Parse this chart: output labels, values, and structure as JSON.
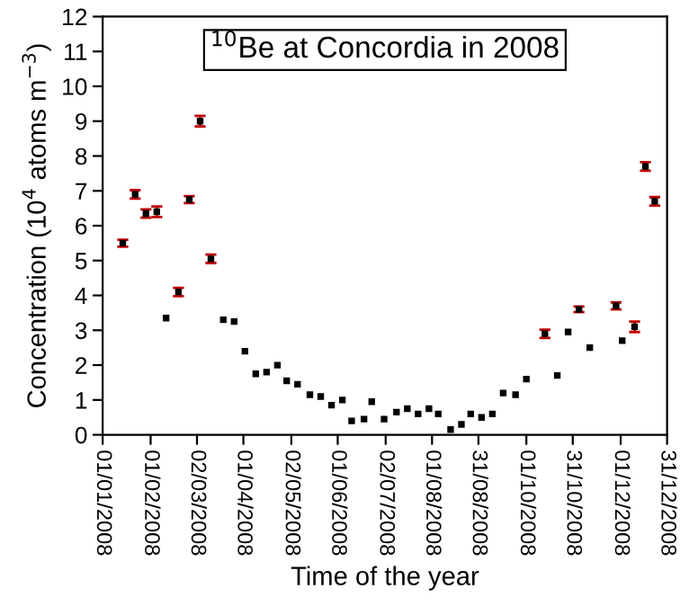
{
  "chart_data": {
    "type": "scatter",
    "title": "$^{10}$Be at Concordia in 2008",
    "xlabel": "Time of the year",
    "ylabel": "Concentration (10$^{4}$ atoms m$^{−3}$)",
    "x": [
      "2008-01-14",
      "2008-01-22",
      "2008-01-29",
      "2008-02-05",
      "2008-02-11",
      "2008-02-19",
      "2008-02-26",
      "2008-03-04",
      "2008-03-11",
      "2008-03-19",
      "2008-03-26",
      "2008-04-02",
      "2008-04-09",
      "2008-04-16",
      "2008-04-23",
      "2008-04-29",
      "2008-05-06",
      "2008-05-14",
      "2008-05-21",
      "2008-05-28",
      "2008-06-04",
      "2008-06-10",
      "2008-06-18",
      "2008-06-23",
      "2008-07-01",
      "2008-07-09",
      "2008-07-16",
      "2008-07-23",
      "2008-07-30",
      "2008-08-05",
      "2008-08-13",
      "2008-08-20",
      "2008-08-26",
      "2008-09-02",
      "2008-09-09",
      "2008-09-16",
      "2008-09-24",
      "2008-10-01",
      "2008-10-13",
      "2008-10-21",
      "2008-10-28",
      "2008-11-04",
      "2008-11-11",
      "2008-11-28",
      "2008-12-02",
      "2008-12-10",
      "2008-12-17",
      "2008-12-23"
    ],
    "series": [
      {
        "color": "#000000",
        "values": [
          5.5,
          6.9,
          6.35,
          6.4,
          3.35,
          4.1,
          6.75,
          9.0,
          5.05,
          3.3,
          3.25,
          2.4,
          1.75,
          1.8,
          2.0,
          1.55,
          1.45,
          1.15,
          1.1,
          0.85,
          1.0,
          0.4,
          0.45,
          0.95,
          0.45,
          0.65,
          0.75,
          0.6,
          0.75,
          0.6,
          0.15,
          0.3,
          0.6,
          0.5,
          0.6,
          1.2,
          1.15,
          1.6,
          2.9,
          1.7,
          2.95,
          3.6,
          2.5,
          3.7,
          2.7,
          3.1,
          7.7,
          6.7
        ],
        "errors": [
          0.1,
          0.12,
          0.12,
          0.15,
          null,
          0.12,
          0.1,
          0.15,
          0.12,
          null,
          null,
          null,
          null,
          null,
          null,
          null,
          null,
          null,
          null,
          null,
          null,
          null,
          null,
          null,
          null,
          null,
          null,
          null,
          null,
          null,
          null,
          null,
          null,
          null,
          null,
          null,
          null,
          null,
          0.12,
          null,
          null,
          0.08,
          null,
          0.1,
          null,
          0.15,
          0.12,
          0.12
        ]
      }
    ],
    "marker": "square",
    "xlim": [
      "2008-01-01",
      "2008-12-31"
    ],
    "xticks": [
      {
        "value": "2008-01-01",
        "label": "01/01/2008"
      },
      {
        "value": "2008-02-01",
        "label": "01/02/2008"
      },
      {
        "value": "2008-03-02",
        "label": "02/03/2008"
      },
      {
        "value": "2008-04-01",
        "label": "01/04/2008"
      },
      {
        "value": "2008-05-02",
        "label": "02/05/2008"
      },
      {
        "value": "2008-06-01",
        "label": "01/06/2008"
      },
      {
        "value": "2008-07-02",
        "label": "02/07/2008"
      },
      {
        "value": "2008-08-01",
        "label": "01/08/2008"
      },
      {
        "value": "2008-08-31",
        "label": "31/08/2008"
      },
      {
        "value": "2008-10-01",
        "label": "01/10/2008"
      },
      {
        "value": "2008-10-31",
        "label": "31/10/2008"
      },
      {
        "value": "2008-12-01",
        "label": "01/12/2008"
      },
      {
        "value": "2008-12-31",
        "label": "31/12/2008"
      }
    ],
    "ylim": [
      0,
      12
    ],
    "yticks": [
      0,
      1,
      2,
      3,
      4,
      5,
      6,
      7,
      8,
      9,
      10,
      11,
      12
    ],
    "grid": false
  }
}
